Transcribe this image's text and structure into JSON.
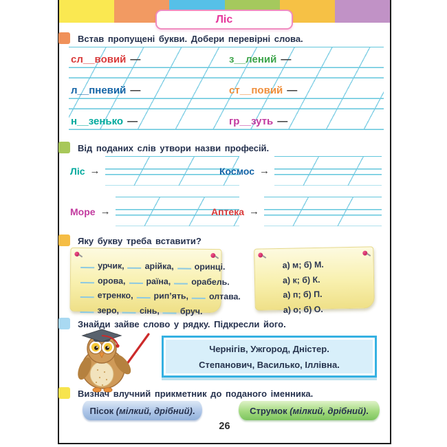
{
  "header": {
    "title": "Ліс",
    "tabs": [
      "#fae851",
      "#f29a62",
      "#56c0e8",
      "#a5c95d",
      "#f6c145",
      "#c192c6"
    ]
  },
  "tasks": {
    "t1": {
      "marker_color": "#f0915a",
      "heading": "Встав пропущені букви. Добери перевірні слова.",
      "dash": "—",
      "words": [
        {
          "text": "сл__вовий",
          "color": "#d93b3b"
        },
        {
          "text": "з__лений",
          "color": "#3da44a"
        },
        {
          "text": "л__пневий",
          "color": "#1565a7"
        },
        {
          "text": "ст__повий",
          "color": "#ef8f3c"
        },
        {
          "text": "н__зенько",
          "color": "#00a99d"
        },
        {
          "text": "гр__зуть",
          "color": "#c23a9f"
        }
      ]
    },
    "t2": {
      "marker_color": "#a8c85a",
      "heading": "Від поданих слів утвори назви професій.",
      "arrow": "→",
      "items": [
        {
          "label": "Ліс",
          "color": "#00a99d"
        },
        {
          "label": "Космос",
          "color": "#1565a7"
        },
        {
          "label": "Море",
          "color": "#c23a9f"
        },
        {
          "label": "Аптека",
          "color": "#d93b3b"
        }
      ]
    },
    "t3": {
      "marker_color": "#f5bd45",
      "heading": "Яку букву треба вставити?",
      "note1_lines": [
        [
          "урчик,",
          "арійка,",
          "оринці."
        ],
        [
          "орова,",
          "раїна,",
          "орабель."
        ],
        [
          "етренко,",
          "рип’ять,",
          "олтава."
        ],
        [
          "зеро,",
          "сінь,",
          "бруч."
        ]
      ],
      "note2_lines": [
        "а) м;  б) М.",
        "а) к;  б) К.",
        "а) п;  б) П.",
        "а) о;  б) О."
      ]
    },
    "t4": {
      "marker_color": "#a9d9f2",
      "heading": "Знайди зайве слово у рядку. Підкресли його.",
      "box_lines": [
        "Чернігів, Ужгород, Дністер.",
        "Степанович, Василько, Іллівна."
      ]
    },
    "t5": {
      "marker_color": "#f7e44d",
      "heading": "Визнач влучний прикметник до поданого іменника.",
      "items": [
        {
          "noun": "Пісок",
          "adjectives": "(мілкий, дрібний)",
          "tail": "."
        },
        {
          "noun": "Струмок",
          "adjectives": "(мілкий, дрібний)",
          "tail": "."
        }
      ]
    }
  },
  "footer": {
    "page_number": "26"
  }
}
